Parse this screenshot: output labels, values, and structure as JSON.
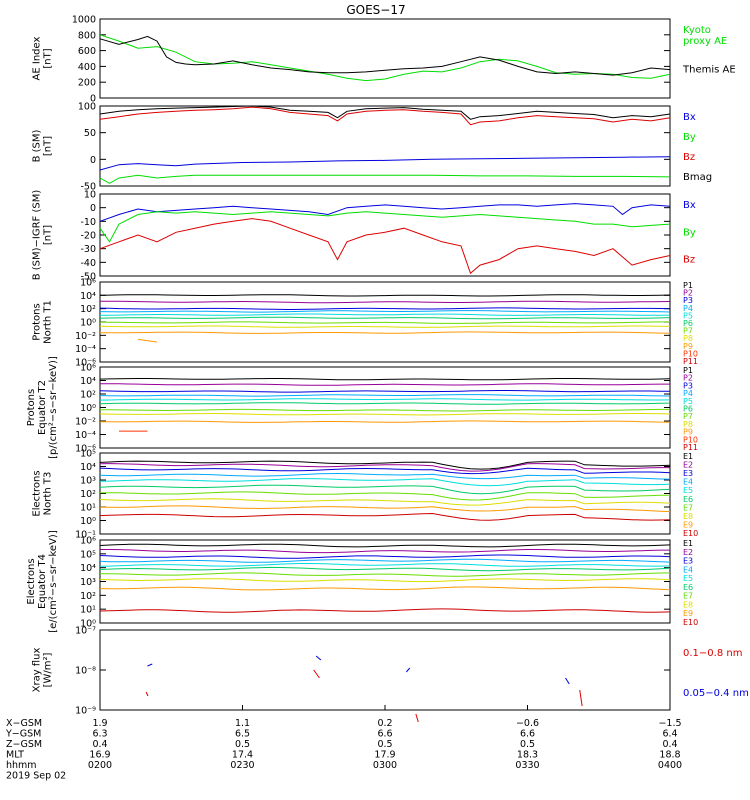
{
  "title": "GOES−17",
  "colors": {
    "frame": "#000000",
    "black": "#000000",
    "green": "#00dd00",
    "red": "#dd0000",
    "blue": "#0000dd",
    "p_channels": [
      "#000000",
      "#990099",
      "#0000dd",
      "#00aaff",
      "#00dddd",
      "#00cc66",
      "#66dd00",
      "#dddd00",
      "#ff9900",
      "#ff3300",
      "#cc0000"
    ],
    "e_channels": [
      "#000000",
      "#990099",
      "#0000dd",
      "#00aaff",
      "#00dddd",
      "#00cc66",
      "#66dd00",
      "#dddd00",
      "#ff9900",
      "#cc0000"
    ]
  },
  "chart_data": [
    {
      "type": "line",
      "panel": "ae",
      "ylabel": [
        "AE Index",
        "[nT]"
      ],
      "ylim": [
        0,
        1000
      ],
      "yticks": [
        "0",
        "200",
        "400",
        "600",
        "800",
        "1000"
      ],
      "series": [
        {
          "name": "Kyoto\nproxy AE",
          "color": "green",
          "x": [
            0,
            4,
            8,
            12,
            16,
            20,
            24,
            28,
            32,
            36,
            40,
            44,
            48,
            52,
            56,
            60,
            64,
            68,
            72,
            76,
            80,
            84,
            88,
            92,
            96,
            100,
            104,
            108,
            112,
            116,
            120
          ],
          "values": [
            800,
            720,
            630,
            650,
            580,
            460,
            430,
            440,
            460,
            420,
            380,
            340,
            300,
            250,
            220,
            240,
            300,
            340,
            330,
            380,
            460,
            490,
            470,
            400,
            320,
            300,
            310,
            300,
            260,
            250,
            300
          ]
        },
        {
          "name": "Themis AE",
          "color": "black",
          "x": [
            0,
            4,
            8,
            10,
            12,
            14,
            16,
            18,
            20,
            24,
            28,
            32,
            36,
            40,
            44,
            48,
            52,
            56,
            60,
            64,
            68,
            72,
            76,
            80,
            84,
            88,
            92,
            96,
            100,
            104,
            108,
            112,
            116,
            120
          ],
          "values": [
            750,
            680,
            740,
            780,
            720,
            520,
            450,
            430,
            420,
            430,
            470,
            420,
            380,
            360,
            330,
            320,
            320,
            330,
            350,
            370,
            380,
            400,
            460,
            520,
            480,
            400,
            330,
            310,
            330,
            310,
            290,
            320,
            380,
            360
          ]
        }
      ]
    },
    {
      "type": "line",
      "panel": "b",
      "ylabel": [
        "B (SM)",
        "[nT]"
      ],
      "ylim": [
        -50,
        100
      ],
      "yticks": [
        "-50",
        "0",
        "50",
        "100"
      ],
      "series": [
        {
          "name": "Bx",
          "color": "blue",
          "x": [
            0,
            4,
            8,
            12,
            16,
            20,
            30,
            40,
            50,
            60,
            70,
            80,
            90,
            100,
            110,
            120
          ],
          "values": [
            -20,
            -10,
            -8,
            -10,
            -12,
            -9,
            -6,
            -5,
            -3,
            -2,
            0,
            1,
            2,
            3,
            4,
            5
          ]
        },
        {
          "name": "By",
          "color": "green",
          "x": [
            0,
            2,
            4,
            8,
            12,
            16,
            20,
            30,
            40,
            50,
            60,
            70,
            80,
            90,
            100,
            110,
            120
          ],
          "values": [
            -35,
            -45,
            -35,
            -30,
            -35,
            -32,
            -30,
            -30,
            -30,
            -30,
            -30,
            -30,
            -31,
            -31,
            -32,
            -32,
            -33
          ]
        },
        {
          "name": "Bz",
          "color": "red",
          "x": [
            0,
            4,
            8,
            12,
            16,
            20,
            24,
            28,
            32,
            36,
            40,
            44,
            48,
            50,
            52,
            56,
            60,
            64,
            68,
            72,
            76,
            78,
            80,
            84,
            88,
            92,
            96,
            100,
            104,
            108,
            112,
            116,
            120
          ],
          "values": [
            75,
            80,
            85,
            88,
            90,
            92,
            93,
            95,
            98,
            95,
            88,
            85,
            82,
            72,
            85,
            90,
            92,
            93,
            90,
            88,
            85,
            65,
            70,
            72,
            78,
            82,
            80,
            78,
            76,
            70,
            75,
            72,
            78
          ]
        },
        {
          "name": "Bmag",
          "color": "black",
          "x": [
            0,
            4,
            8,
            12,
            16,
            20,
            24,
            28,
            32,
            36,
            40,
            44,
            48,
            50,
            52,
            56,
            60,
            64,
            68,
            72,
            76,
            78,
            80,
            84,
            88,
            92,
            96,
            100,
            104,
            108,
            112,
            116,
            120
          ],
          "values": [
            85,
            90,
            93,
            95,
            96,
            97,
            98,
            99,
            100,
            98,
            92,
            90,
            88,
            78,
            90,
            95,
            96,
            97,
            94,
            92,
            90,
            75,
            80,
            82,
            86,
            90,
            88,
            86,
            84,
            78,
            82,
            80,
            85
          ]
        }
      ]
    },
    {
      "type": "line",
      "panel": "db",
      "ylabel": [
        "B (SM)−IGRF (SM)",
        "[nT]"
      ],
      "ylim": [
        -50,
        10
      ],
      "yticks": [
        "-50",
        "-40",
        "-30",
        "-20",
        "-10",
        "0",
        "10"
      ],
      "series": [
        {
          "name": "Bx",
          "color": "blue",
          "x": [
            0,
            4,
            8,
            12,
            16,
            20,
            24,
            28,
            32,
            36,
            40,
            44,
            48,
            52,
            56,
            60,
            64,
            68,
            72,
            76,
            80,
            84,
            88,
            92,
            96,
            100,
            104,
            108,
            110,
            112,
            116,
            120
          ],
          "values": [
            -10,
            -5,
            -1,
            -3,
            -2,
            -1,
            0,
            1,
            0,
            -1,
            -2,
            -3,
            -5,
            0,
            1,
            2,
            1,
            0,
            -1,
            0,
            1,
            2,
            2,
            1,
            2,
            3,
            2,
            1,
            -5,
            0,
            2,
            1
          ]
        },
        {
          "name": "By",
          "color": "green",
          "x": [
            0,
            2,
            4,
            8,
            12,
            16,
            20,
            24,
            28,
            32,
            36,
            40,
            44,
            48,
            52,
            56,
            60,
            64,
            68,
            72,
            76,
            80,
            84,
            88,
            92,
            96,
            100,
            104,
            108,
            112,
            116,
            120
          ],
          "values": [
            -15,
            -25,
            -12,
            -5,
            -3,
            -4,
            -3,
            -4,
            -5,
            -4,
            -3,
            -4,
            -5,
            -6,
            -4,
            -3,
            -4,
            -5,
            -6,
            -7,
            -6,
            -5,
            -6,
            -7,
            -8,
            -9,
            -10,
            -12,
            -12,
            -14,
            -13,
            -12
          ]
        },
        {
          "name": "Bz",
          "color": "red",
          "x": [
            0,
            4,
            8,
            12,
            16,
            20,
            24,
            28,
            32,
            36,
            40,
            44,
            48,
            50,
            52,
            56,
            60,
            64,
            68,
            72,
            76,
            78,
            80,
            84,
            88,
            92,
            96,
            100,
            104,
            108,
            112,
            116,
            120
          ],
          "values": [
            -30,
            -25,
            -20,
            -25,
            -18,
            -15,
            -12,
            -10,
            -8,
            -10,
            -15,
            -20,
            -25,
            -38,
            -25,
            -20,
            -18,
            -15,
            -20,
            -25,
            -28,
            -48,
            -42,
            -38,
            -30,
            -28,
            -30,
            -32,
            -35,
            -30,
            -42,
            -38,
            -35
          ]
        }
      ]
    },
    {
      "type": "line",
      "panel": "pn",
      "scale": "log",
      "ylabel": [
        "Protons",
        "North T1"
      ],
      "ylim": [
        -6,
        6
      ],
      "yticks": [
        "10⁻⁶",
        "10⁻⁴",
        "10⁻²",
        "10⁰",
        "10²",
        "10⁴",
        "10⁶"
      ],
      "series_names": [
        "P1",
        "P2",
        "P3",
        "P4",
        "P5",
        "P6",
        "P7",
        "P8",
        "P9",
        "P10",
        "P11"
      ],
      "log_levels": [
        4.0,
        3.0,
        2.0,
        1.6,
        1.1,
        0.6,
        -0.1,
        -0.7,
        -1.6,
        null,
        null
      ],
      "fragment": {
        "series": "P9",
        "x": [
          8,
          12
        ],
        "values": [
          -2.6,
          -3.0
        ]
      }
    },
    {
      "type": "line",
      "panel": "pe",
      "scale": "log",
      "ylabel": [
        "Protons",
        "Equator T2",
        "[p/(cm²−s−sr−keV)]"
      ],
      "ylim": [
        -6,
        6
      ],
      "yticks": [
        "10⁻⁶",
        "10⁻⁴",
        "10⁻²",
        "10⁰",
        "10²",
        "10⁴",
        "10⁶"
      ],
      "series_names": [
        "P1",
        "P2",
        "P3",
        "P4",
        "P5",
        "P6",
        "P7",
        "P8",
        "P9",
        "P10",
        "P11"
      ],
      "log_levels": [
        4.2,
        3.4,
        2.4,
        1.8,
        1.2,
        0.6,
        -0.4,
        -1.0,
        -2.1,
        null,
        null
      ],
      "fragment": {
        "series": "P10",
        "x": [
          4,
          10
        ],
        "values": [
          -3.5,
          -3.5
        ]
      }
    },
    {
      "type": "line",
      "panel": "en",
      "scale": "log",
      "ylabel": [
        "Electrons",
        "North T3"
      ],
      "ylim": [
        -1,
        5
      ],
      "yticks": [
        "10⁻¹",
        "10⁰",
        "10¹",
        "10²",
        "10³",
        "10⁴",
        "10⁵"
      ],
      "series_names": [
        "E1",
        "E2",
        "E3",
        "E4",
        "E5",
        "E6",
        "E7",
        "E8",
        "E9",
        "E10"
      ],
      "log_levels": [
        4.3,
        4.1,
        3.8,
        3.4,
        3.0,
        2.5,
        2.0,
        1.5,
        1.0,
        0.4
      ]
    },
    {
      "type": "line",
      "panel": "ee",
      "scale": "log",
      "ylabel": [
        "Electrons",
        "Equator T4",
        "[e/(cm²−s−sr−keV)]"
      ],
      "ylim": [
        0,
        6
      ],
      "yticks": [
        "10⁰",
        "10¹",
        "10²",
        "10³",
        "10⁴",
        "10⁵",
        "10⁶"
      ],
      "series_names": [
        "E1",
        "E2",
        "E3",
        "E4",
        "E5",
        "E6",
        "E7",
        "E8",
        "E9",
        "E10"
      ],
      "log_levels": [
        5.6,
        5.2,
        4.8,
        4.5,
        4.2,
        3.9,
        3.5,
        3.1,
        2.5,
        0.9
      ]
    },
    {
      "type": "scatter",
      "panel": "xray",
      "scale": "log",
      "ylabel": [
        "Xray flux",
        "[W/m²]"
      ],
      "ylim": [
        -9,
        -7
      ],
      "yticks": [
        "10⁻⁹",
        "10⁻⁸",
        "10⁻⁷"
      ],
      "series": [
        {
          "name": "0.1−0.8 nm",
          "color": "red",
          "segments": [
            [
              [
                9.7,
                -8.55
              ],
              [
                10.1,
                -8.65
              ]
            ],
            [
              [
                45,
                -8.0
              ],
              [
                46.2,
                -8.2
              ]
            ],
            [
              [
                66.5,
                -9.1
              ],
              [
                67,
                -9.3
              ]
            ],
            [
              [
                101,
                -8.5
              ],
              [
                101.5,
                -8.9
              ]
            ]
          ]
        },
        {
          "name": "0.05−0.4 nm",
          "color": "blue",
          "segments": [
            [
              [
                10,
                -7.9
              ],
              [
                11,
                -7.85
              ]
            ],
            [
              [
                45.5,
                -7.65
              ],
              [
                46.5,
                -7.75
              ]
            ],
            [
              [
                64.5,
                -8.05
              ],
              [
                65.2,
                -7.95
              ]
            ],
            [
              [
                98,
                -8.2
              ],
              [
                98.8,
                -8.35
              ]
            ]
          ]
        }
      ]
    }
  ],
  "xaxis": {
    "range_minutes": [
      0,
      120
    ],
    "row_labels": [
      "X−GSM",
      "Y−GSM",
      "Z−GSM",
      "MLT",
      "hhmm",
      "2019 Sep 02"
    ],
    "ticks": [
      {
        "t": 0,
        "values": [
          "1.9",
          "6.3",
          "0.4",
          "16.9",
          "0200"
        ]
      },
      {
        "t": 30,
        "values": [
          "1.1",
          "6.5",
          "0.5",
          "17.4",
          "0230"
        ]
      },
      {
        "t": 60,
        "values": [
          "0.2",
          "6.6",
          "0.5",
          "17.9",
          "0300"
        ]
      },
      {
        "t": 90,
        "values": [
          "−0.6",
          "6.6",
          "0.5",
          "18.3",
          "0330"
        ]
      },
      {
        "t": 120,
        "values": [
          "−1.5",
          "6.4",
          "0.4",
          "18.8",
          "0400"
        ]
      }
    ]
  }
}
